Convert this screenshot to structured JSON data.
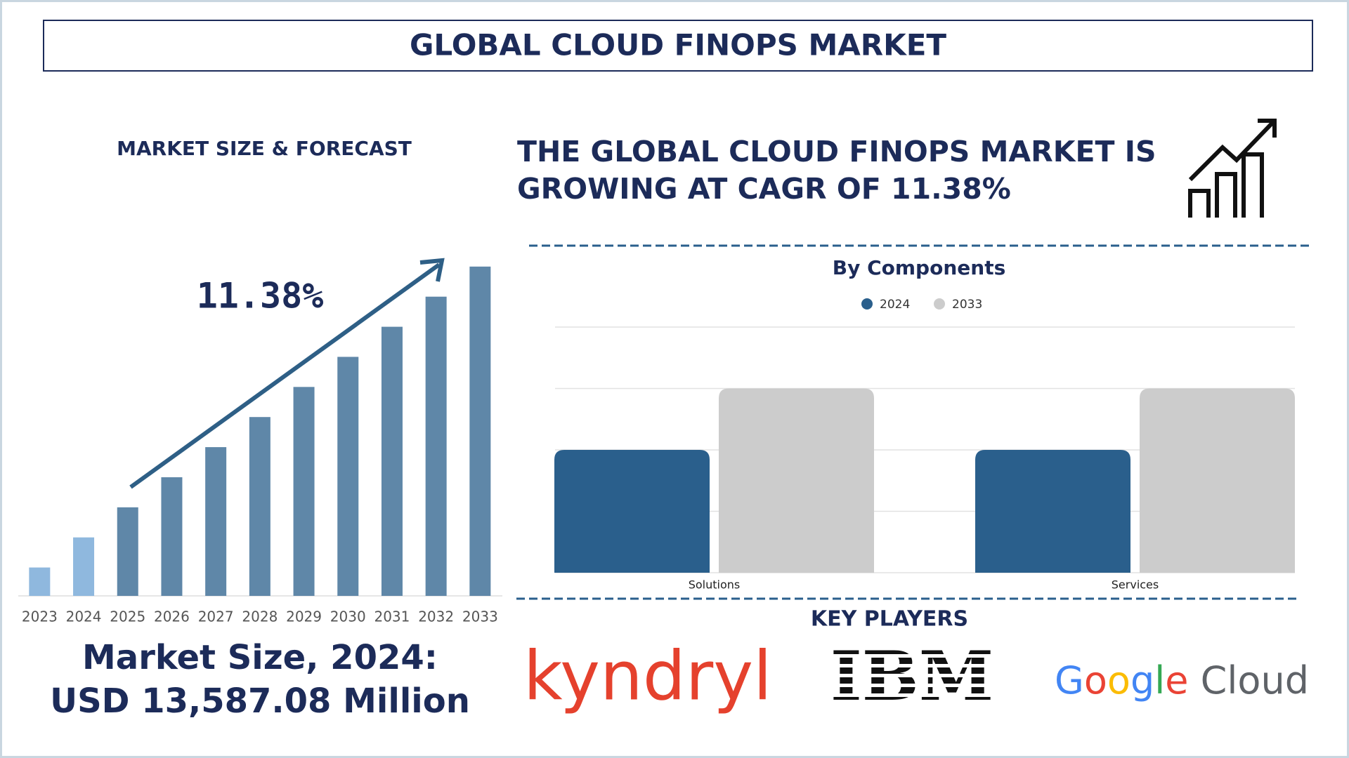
{
  "header": {
    "title": "GLOBAL CLOUD FINOPS MARKET"
  },
  "headline": [
    "THE GLOBAL CLOUD FINOPS MARKET IS",
    "GROWING AT CAGR OF 11.38%"
  ],
  "market_size": [
    "Market Size, 2024:",
    "USD 13,587.08 Million"
  ],
  "chart_data": [
    {
      "type": "bar",
      "title": "MARKET SIZE & FORECAST",
      "annotation": "11.38%",
      "categories": [
        "2023",
        "2024",
        "2025",
        "2026",
        "2027",
        "2028",
        "2029",
        "2030",
        "2031",
        "2032",
        "2033"
      ],
      "values": [
        33,
        68,
        103,
        138,
        173,
        208,
        243,
        278,
        313,
        348,
        383
      ],
      "colors": [
        "#8fb8de",
        "#8fb8de",
        "#5f87a8",
        "#5f87a8",
        "#5f87a8",
        "#5f87a8",
        "#5f87a8",
        "#5f87a8",
        "#5f87a8",
        "#5f87a8",
        "#5f87a8"
      ],
      "ylim": [
        0,
        400
      ]
    },
    {
      "type": "grouped-bar",
      "title": "By Components",
      "categories": [
        "Solutions",
        "Services"
      ],
      "series": [
        {
          "name": "2024",
          "color": "#2a5f8c",
          "values": [
            2,
            2
          ]
        },
        {
          "name": "2033",
          "color": "#cccccc",
          "values": [
            3,
            3
          ]
        }
      ],
      "ylim": [
        0,
        4
      ],
      "yticks": [
        0,
        1,
        2,
        3,
        4
      ],
      "grid": true
    }
  ],
  "key_players": {
    "title": "KEY PLAYERS",
    "names": [
      "kyndryl",
      "IBM",
      "Google Cloud"
    ]
  }
}
